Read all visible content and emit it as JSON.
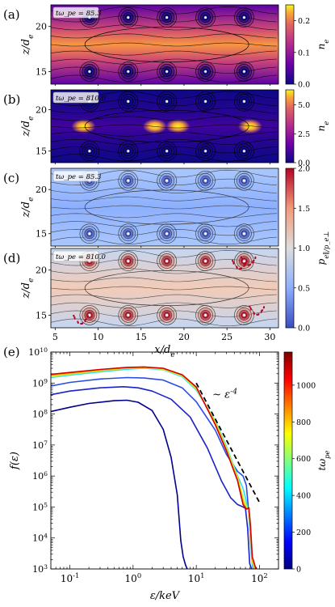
{
  "chart_data": [
    {
      "type": "heatmap",
      "panel_label": "(a)",
      "time_label": "tω_pe = 85.3",
      "ylabel": "z/d_e",
      "x_range": [
        4.5,
        31
      ],
      "y_range": [
        13.6,
        22.4
      ],
      "y_ticks": [
        "15",
        "20"
      ],
      "colorbar": {
        "label": "n_e",
        "range": [
          0.0,
          0.25
        ],
        "ticks": [
          "0.0",
          "0.1",
          "0.2"
        ],
        "colormap": "plasma"
      },
      "island_x": [
        9,
        13.5,
        18,
        22.5,
        27
      ],
      "island_z": [
        15,
        21
      ]
    },
    {
      "type": "heatmap",
      "panel_label": "(b)",
      "time_label": "tω_pe = 810.0",
      "ylabel": "z/d_e",
      "x_range": [
        4.5,
        31
      ],
      "y_range": [
        13.6,
        22.4
      ],
      "y_ticks": [
        "15",
        "20"
      ],
      "colorbar": {
        "label": "n_e",
        "range": [
          0.0,
          6.3
        ],
        "ticks": [
          "0.0",
          "2.5",
          "5.0"
        ],
        "colormap": "plasma"
      },
      "island_x": [
        9,
        13.5,
        18,
        22.5,
        27
      ],
      "island_z": [
        15,
        21
      ],
      "hotspots_x": [
        8.3,
        16.6,
        19.3,
        27.7
      ]
    },
    {
      "type": "heatmap",
      "panel_label": "(c)",
      "time_label": "tω_pe = 85.3",
      "ylabel": "z/d_e",
      "x_range": [
        4.5,
        31
      ],
      "y_range": [
        13.6,
        22.4
      ],
      "y_ticks": [
        "15",
        "20"
      ],
      "colorbar": {
        "label": "p_e∥/p_e⊥",
        "range": [
          0.0,
          2.0
        ],
        "ticks": [
          "0.0",
          "0.5",
          "1.0",
          "1.5",
          "2.0"
        ],
        "colormap": "coolwarm"
      },
      "island_x": [
        9,
        13.5,
        18,
        22.5,
        27
      ],
      "island_z": [
        15,
        21
      ]
    },
    {
      "type": "heatmap",
      "panel_label": "(d)",
      "time_label": "tω_pe = 810.0",
      "ylabel": "z/d_e",
      "xlabel": "x/d_e",
      "x_range": [
        4.5,
        31
      ],
      "x_ticks": [
        "5",
        "10",
        "15",
        "20",
        "25",
        "30"
      ],
      "y_range": [
        13.6,
        22.4
      ],
      "y_ticks": [
        "15",
        "20"
      ],
      "island_x": [
        9,
        13.5,
        18,
        22.5,
        27
      ],
      "island_z": [
        15,
        21
      ]
    },
    {
      "type": "line",
      "panel_label": "(e)",
      "xlabel": "ε/keV",
      "ylabel": "f(ε)",
      "x_scale": "log",
      "y_scale": "log",
      "xlim": [
        0.05,
        200
      ],
      "ylim": [
        1000,
        10000000000
      ],
      "x_ticks": [
        "10^-1",
        "10^0",
        "10^1",
        "10^2"
      ],
      "y_ticks": [
        "10^3",
        "10^4",
        "10^5",
        "10^6",
        "10^7",
        "10^8",
        "10^9",
        "10^10"
      ],
      "annotation": "∼ ε^-4",
      "reference_line": {
        "x": [
          10,
          100
        ],
        "y": [
          1000000000,
          140000
        ]
      },
      "colorbar": {
        "label": "tω_pe",
        "range": [
          0,
          1180
        ],
        "ticks": [
          "0",
          "200",
          "400",
          "600",
          "800",
          "1000"
        ],
        "colormap": "jet"
      },
      "series": [
        {
          "t": 0,
          "color": "#00008b",
          "x": [
            0.05,
            0.1,
            0.2,
            0.5,
            0.8,
            1.2,
            2,
            3,
            4,
            5,
            5.7,
            6.2,
            6.8,
            7.2
          ],
          "y": [
            120000000,
            165000000,
            220000000,
            270000000,
            280000000,
            240000000,
            130000000,
            32000000,
            4000000,
            250000,
            8000,
            2500,
            1300,
            1000
          ]
        },
        {
          "t": 90,
          "color": "#1a22c8",
          "x": [
            0.05,
            0.1,
            0.3,
            0.7,
            1.2,
            2,
            4,
            8,
            15,
            25,
            35,
            45,
            55,
            60,
            65,
            70,
            75
          ],
          "y": [
            420000000,
            550000000,
            700000000,
            760000000,
            700000000,
            550000000,
            300000000,
            80000000,
            8000000,
            700000,
            200000,
            120000,
            100000,
            90000,
            20000,
            1500,
            1000
          ]
        },
        {
          "t": 180,
          "color": "#2a4ce6",
          "x": [
            0.05,
            0.1,
            0.3,
            0.8,
            1.5,
            3,
            6,
            10,
            20,
            30,
            45,
            55,
            62,
            68,
            72,
            77,
            80
          ],
          "y": [
            800000000,
            1050000000,
            1350000000,
            1500000000,
            1450000000,
            1250000000,
            700000000,
            250000000,
            30000000,
            5000000,
            1400000,
            1000000,
            500000,
            60000,
            8000,
            1500,
            1000
          ]
        },
        {
          "t": 430,
          "color": "#2fe0ea",
          "x": [
            0.05,
            0.1,
            0.3,
            0.8,
            1.5,
            3,
            6,
            10,
            20,
            30,
            45,
            55,
            62,
            68,
            72,
            77,
            82
          ],
          "y": [
            1500000000,
            1800000000,
            2300000000,
            2800000000,
            3000000000,
            2700000000,
            1600000000,
            600000000,
            60000000,
            9000000,
            1000000,
            400000,
            150000,
            60000,
            10000,
            1500,
            1000
          ]
        },
        {
          "t": 650,
          "color": "#b8ff3a",
          "x": [
            0.05,
            0.1,
            0.3,
            0.8,
            1.5,
            3,
            6,
            10,
            20,
            30,
            45,
            55,
            62,
            68,
            72,
            77,
            84
          ],
          "y": [
            1600000000,
            1950000000,
            2500000000,
            3000000000,
            3100000000,
            2800000000,
            1700000000,
            650000000,
            55000000,
            8000000,
            900000,
            200000,
            110000,
            70000,
            15000,
            1800,
            1000
          ]
        },
        {
          "t": 870,
          "color": "#ffb200",
          "x": [
            0.05,
            0.1,
            0.3,
            0.8,
            1.5,
            3,
            6,
            10,
            20,
            30,
            45,
            55,
            62,
            68,
            72,
            77,
            86
          ],
          "y": [
            1750000000,
            2050000000,
            2600000000,
            3100000000,
            3200000000,
            2900000000,
            1800000000,
            700000000,
            50000000,
            7000000,
            800000,
            150000,
            90000,
            85000,
            20000,
            2000,
            1000
          ]
        },
        {
          "t": 1180,
          "color": "#d40000",
          "x": [
            0.05,
            0.1,
            0.3,
            0.8,
            1.5,
            3,
            6,
            10,
            20,
            30,
            45,
            55,
            62,
            68,
            72,
            77,
            88
          ],
          "y": [
            1900000000,
            2200000000,
            2750000000,
            3200000000,
            3300000000,
            3000000000,
            1850000000,
            750000000,
            45000000,
            6500000,
            700000,
            120000,
            85000,
            95000,
            25000,
            2500,
            1000
          ]
        }
      ]
    }
  ]
}
